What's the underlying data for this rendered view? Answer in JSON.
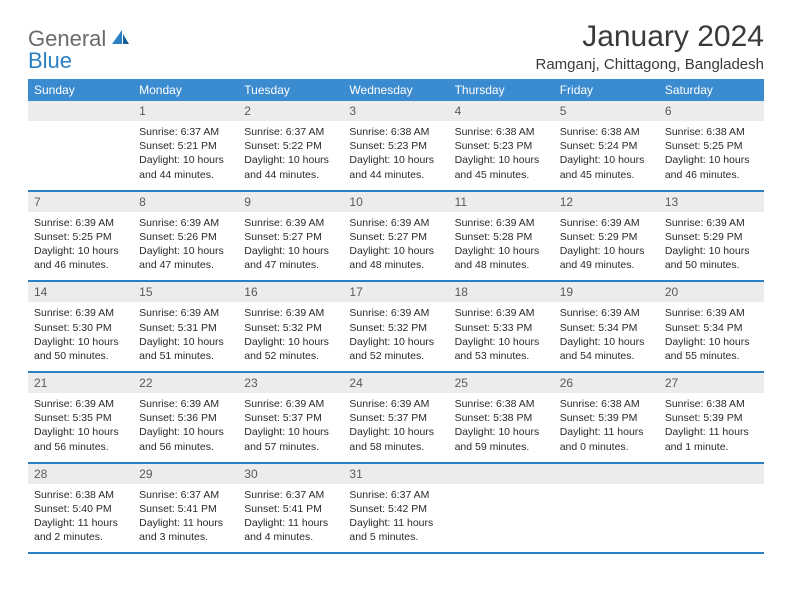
{
  "logo": {
    "general": "General",
    "blue": "Blue"
  },
  "title": "January 2024",
  "location": "Ramganj, Chittagong, Bangladesh",
  "colors": {
    "header_bg": "#3a8bd0",
    "header_text": "#ffffff",
    "rule": "#2b7fc3",
    "daynum_bg": "#ececec",
    "daynum_text": "#5a5a5a",
    "body_text": "#2a2a2a",
    "logo_gray": "#6b6b6b",
    "logo_blue": "#2b7fc3"
  },
  "typography": {
    "title_fontsize": 30,
    "location_fontsize": 15,
    "header_fontsize": 12,
    "daynum_fontsize": 12,
    "body_fontsize": 10.5
  },
  "day_headers": [
    "Sunday",
    "Monday",
    "Tuesday",
    "Wednesday",
    "Thursday",
    "Friday",
    "Saturday"
  ],
  "weeks": [
    [
      {
        "n": "",
        "sunrise": "",
        "sunset": "",
        "daylight": ""
      },
      {
        "n": "1",
        "sunrise": "Sunrise: 6:37 AM",
        "sunset": "Sunset: 5:21 PM",
        "daylight": "Daylight: 10 hours and 44 minutes."
      },
      {
        "n": "2",
        "sunrise": "Sunrise: 6:37 AM",
        "sunset": "Sunset: 5:22 PM",
        "daylight": "Daylight: 10 hours and 44 minutes."
      },
      {
        "n": "3",
        "sunrise": "Sunrise: 6:38 AM",
        "sunset": "Sunset: 5:23 PM",
        "daylight": "Daylight: 10 hours and 44 minutes."
      },
      {
        "n": "4",
        "sunrise": "Sunrise: 6:38 AM",
        "sunset": "Sunset: 5:23 PM",
        "daylight": "Daylight: 10 hours and 45 minutes."
      },
      {
        "n": "5",
        "sunrise": "Sunrise: 6:38 AM",
        "sunset": "Sunset: 5:24 PM",
        "daylight": "Daylight: 10 hours and 45 minutes."
      },
      {
        "n": "6",
        "sunrise": "Sunrise: 6:38 AM",
        "sunset": "Sunset: 5:25 PM",
        "daylight": "Daylight: 10 hours and 46 minutes."
      }
    ],
    [
      {
        "n": "7",
        "sunrise": "Sunrise: 6:39 AM",
        "sunset": "Sunset: 5:25 PM",
        "daylight": "Daylight: 10 hours and 46 minutes."
      },
      {
        "n": "8",
        "sunrise": "Sunrise: 6:39 AM",
        "sunset": "Sunset: 5:26 PM",
        "daylight": "Daylight: 10 hours and 47 minutes."
      },
      {
        "n": "9",
        "sunrise": "Sunrise: 6:39 AM",
        "sunset": "Sunset: 5:27 PM",
        "daylight": "Daylight: 10 hours and 47 minutes."
      },
      {
        "n": "10",
        "sunrise": "Sunrise: 6:39 AM",
        "sunset": "Sunset: 5:27 PM",
        "daylight": "Daylight: 10 hours and 48 minutes."
      },
      {
        "n": "11",
        "sunrise": "Sunrise: 6:39 AM",
        "sunset": "Sunset: 5:28 PM",
        "daylight": "Daylight: 10 hours and 48 minutes."
      },
      {
        "n": "12",
        "sunrise": "Sunrise: 6:39 AM",
        "sunset": "Sunset: 5:29 PM",
        "daylight": "Daylight: 10 hours and 49 minutes."
      },
      {
        "n": "13",
        "sunrise": "Sunrise: 6:39 AM",
        "sunset": "Sunset: 5:29 PM",
        "daylight": "Daylight: 10 hours and 50 minutes."
      }
    ],
    [
      {
        "n": "14",
        "sunrise": "Sunrise: 6:39 AM",
        "sunset": "Sunset: 5:30 PM",
        "daylight": "Daylight: 10 hours and 50 minutes."
      },
      {
        "n": "15",
        "sunrise": "Sunrise: 6:39 AM",
        "sunset": "Sunset: 5:31 PM",
        "daylight": "Daylight: 10 hours and 51 minutes."
      },
      {
        "n": "16",
        "sunrise": "Sunrise: 6:39 AM",
        "sunset": "Sunset: 5:32 PM",
        "daylight": "Daylight: 10 hours and 52 minutes."
      },
      {
        "n": "17",
        "sunrise": "Sunrise: 6:39 AM",
        "sunset": "Sunset: 5:32 PM",
        "daylight": "Daylight: 10 hours and 52 minutes."
      },
      {
        "n": "18",
        "sunrise": "Sunrise: 6:39 AM",
        "sunset": "Sunset: 5:33 PM",
        "daylight": "Daylight: 10 hours and 53 minutes."
      },
      {
        "n": "19",
        "sunrise": "Sunrise: 6:39 AM",
        "sunset": "Sunset: 5:34 PM",
        "daylight": "Daylight: 10 hours and 54 minutes."
      },
      {
        "n": "20",
        "sunrise": "Sunrise: 6:39 AM",
        "sunset": "Sunset: 5:34 PM",
        "daylight": "Daylight: 10 hours and 55 minutes."
      }
    ],
    [
      {
        "n": "21",
        "sunrise": "Sunrise: 6:39 AM",
        "sunset": "Sunset: 5:35 PM",
        "daylight": "Daylight: 10 hours and 56 minutes."
      },
      {
        "n": "22",
        "sunrise": "Sunrise: 6:39 AM",
        "sunset": "Sunset: 5:36 PM",
        "daylight": "Daylight: 10 hours and 56 minutes."
      },
      {
        "n": "23",
        "sunrise": "Sunrise: 6:39 AM",
        "sunset": "Sunset: 5:37 PM",
        "daylight": "Daylight: 10 hours and 57 minutes."
      },
      {
        "n": "24",
        "sunrise": "Sunrise: 6:39 AM",
        "sunset": "Sunset: 5:37 PM",
        "daylight": "Daylight: 10 hours and 58 minutes."
      },
      {
        "n": "25",
        "sunrise": "Sunrise: 6:38 AM",
        "sunset": "Sunset: 5:38 PM",
        "daylight": "Daylight: 10 hours and 59 minutes."
      },
      {
        "n": "26",
        "sunrise": "Sunrise: 6:38 AM",
        "sunset": "Sunset: 5:39 PM",
        "daylight": "Daylight: 11 hours and 0 minutes."
      },
      {
        "n": "27",
        "sunrise": "Sunrise: 6:38 AM",
        "sunset": "Sunset: 5:39 PM",
        "daylight": "Daylight: 11 hours and 1 minute."
      }
    ],
    [
      {
        "n": "28",
        "sunrise": "Sunrise: 6:38 AM",
        "sunset": "Sunset: 5:40 PM",
        "daylight": "Daylight: 11 hours and 2 minutes."
      },
      {
        "n": "29",
        "sunrise": "Sunrise: 6:37 AM",
        "sunset": "Sunset: 5:41 PM",
        "daylight": "Daylight: 11 hours and 3 minutes."
      },
      {
        "n": "30",
        "sunrise": "Sunrise: 6:37 AM",
        "sunset": "Sunset: 5:41 PM",
        "daylight": "Daylight: 11 hours and 4 minutes."
      },
      {
        "n": "31",
        "sunrise": "Sunrise: 6:37 AM",
        "sunset": "Sunset: 5:42 PM",
        "daylight": "Daylight: 11 hours and 5 minutes."
      },
      {
        "n": "",
        "sunrise": "",
        "sunset": "",
        "daylight": ""
      },
      {
        "n": "",
        "sunrise": "",
        "sunset": "",
        "daylight": ""
      },
      {
        "n": "",
        "sunrise": "",
        "sunset": "",
        "daylight": ""
      }
    ]
  ]
}
